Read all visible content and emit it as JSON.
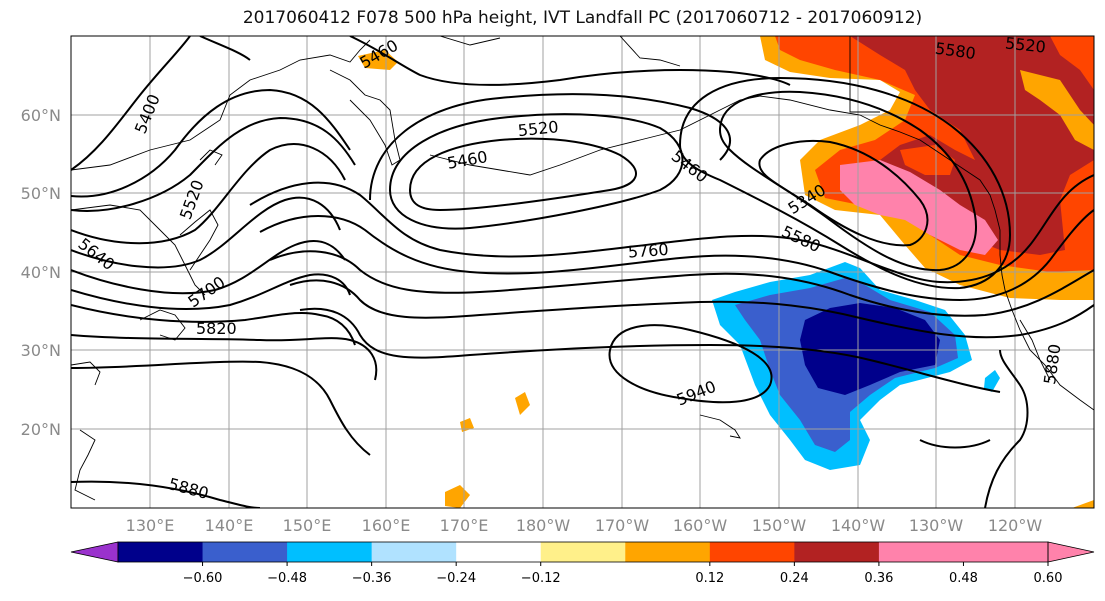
{
  "title": "2017060412 F078 500 hPa height, IVT Landfall PC (2017060712 - 2017060912)",
  "lat_labels": [
    "60°N",
    "50°N",
    "40°N",
    "30°N",
    "20°N"
  ],
  "lon_labels": [
    "130°E",
    "140°E",
    "150°E",
    "160°E",
    "170°E",
    "180°W",
    "170°W",
    "160°W",
    "150°W",
    "140°W",
    "130°W",
    "120°W"
  ],
  "contour_labels": [
    "5400",
    "5460",
    "5520",
    "5520",
    "5580",
    "5520",
    "5460",
    "5460",
    "5340",
    "5580",
    "5640",
    "5700",
    "5760",
    "5820",
    "5880",
    "5940",
    "5880"
  ],
  "colorbar": {
    "ticks": [
      "−0.60",
      "−0.48",
      "−0.36",
      "−0.24",
      "−0.12",
      "0.12",
      "0.24",
      "0.36",
      "0.48",
      "0.60"
    ],
    "colors": [
      "#9a32cd",
      "#00008b",
      "#3a5fcd",
      "#00bfff",
      "#b0e2ff",
      "#ffffff",
      "#fff08a",
      "#ffa500",
      "#ff4500",
      "#b22222",
      "#ff82ab",
      "#ff82ab"
    ]
  }
}
